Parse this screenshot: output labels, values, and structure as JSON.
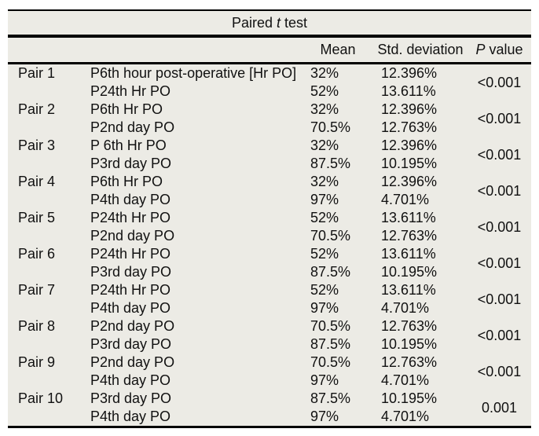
{
  "table": {
    "title": {
      "prefix": "Paired ",
      "t_italic": "t",
      "suffix": " test"
    },
    "columns": {
      "pair": "",
      "measure": "",
      "mean": "Mean",
      "std": "Std. deviation",
      "p_italic": "P",
      "p_suffix": " value"
    },
    "pairs": [
      {
        "pair": "Pair 1",
        "p_value": "<0.001",
        "rows": [
          {
            "label": "P6th hour post-operative [Hr PO]",
            "mean": "32%",
            "std": "12.396%"
          },
          {
            "label": "P24th Hr PO",
            "mean": "52%",
            "std": "13.611%"
          }
        ]
      },
      {
        "pair": "Pair 2",
        "p_value": "<0.001",
        "rows": [
          {
            "label": "P6th Hr PO",
            "mean": "32%",
            "std": "12.396%"
          },
          {
            "label": "P2nd day PO",
            "mean": "70.5%",
            "std": "12.763%"
          }
        ]
      },
      {
        "pair": "Pair 3",
        "p_value": "<0.001",
        "rows": [
          {
            "label": "P 6th Hr PO",
            "mean": "32%",
            "std": "12.396%"
          },
          {
            "label": "P3rd day PO",
            "mean": "87.5%",
            "std": "10.195%"
          }
        ]
      },
      {
        "pair": "Pair 4",
        "p_value": "<0.001",
        "rows": [
          {
            "label": "P6th Hr PO",
            "mean": "32%",
            "std": "12.396%"
          },
          {
            "label": "P4th day PO",
            "mean": "97%",
            "std": "4.701%"
          }
        ]
      },
      {
        "pair": "Pair 5",
        "p_value": "<0.001",
        "rows": [
          {
            "label": "P24th Hr PO",
            "mean": "52%",
            "std": "13.611%"
          },
          {
            "label": "P2nd day PO",
            "mean": "70.5%",
            "std": "12.763%"
          }
        ]
      },
      {
        "pair": "Pair 6",
        "p_value": "<0.001",
        "rows": [
          {
            "label": "P24th Hr PO",
            "mean": "52%",
            "std": "13.611%"
          },
          {
            "label": "P3rd day PO",
            "mean": "87.5%",
            "std": "10.195%"
          }
        ]
      },
      {
        "pair": "Pair 7",
        "p_value": "<0.001",
        "rows": [
          {
            "label": "P24th Hr PO",
            "mean": "52%",
            "std": "13.611%"
          },
          {
            "label": "P4th day PO",
            "mean": "97%",
            "std": "4.701%"
          }
        ]
      },
      {
        "pair": "Pair 8",
        "p_value": "<0.001",
        "rows": [
          {
            "label": "P2nd day PO",
            "mean": "70.5%",
            "std": "12.763%"
          },
          {
            "label": "P3rd day PO",
            "mean": "87.5%",
            "std": "10.195%"
          }
        ]
      },
      {
        "pair": "Pair 9",
        "p_value": "<0.001",
        "rows": [
          {
            "label": "P2nd day PO",
            "mean": "70.5%",
            "std": "12.763%"
          },
          {
            "label": "P4th day PO",
            "mean": "97%",
            "std": "4.701%"
          }
        ]
      },
      {
        "pair": "Pair 10",
        "p_value": "0.001",
        "rows": [
          {
            "label": "P3rd day PO",
            "mean": "87.5%",
            "std": "10.195%"
          },
          {
            "label": "P4th day PO",
            "mean": "97%",
            "std": "4.701%"
          }
        ]
      }
    ],
    "colors": {
      "table_background": "#ECEBE5",
      "rule": "#000000",
      "text": "#111111",
      "page_background": "#ffffff"
    }
  }
}
